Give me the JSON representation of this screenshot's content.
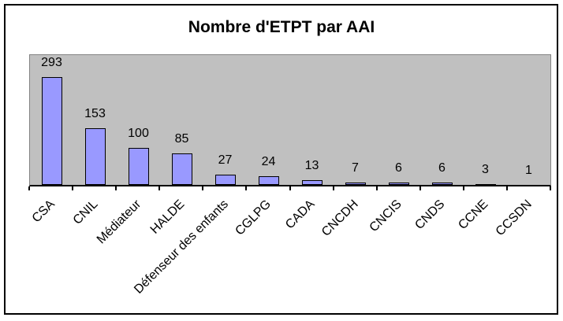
{
  "chart_data": {
    "type": "bar",
    "title": "Nombre d'ETPT par AAI",
    "categories": [
      "CSA",
      "CNIL",
      "Médiateur",
      "HALDE",
      "Défenseur des enfants",
      "CGLPG",
      "CADA",
      "CNCDH",
      "CNCIS",
      "CNDS",
      "CCNE",
      "CCSDN"
    ],
    "values": [
      293,
      153,
      100,
      85,
      27,
      24,
      13,
      7,
      6,
      6,
      3,
      1
    ],
    "value_labels": [
      "293",
      "153",
      "100",
      "85",
      "27",
      "24",
      "13",
      "7",
      "6",
      "6",
      "3",
      "1"
    ],
    "xlabel": "",
    "ylabel": "",
    "legend": "none",
    "grid": false,
    "y_axis_visible": false,
    "value_labels_shown": true,
    "category_label_rotation_deg": -45,
    "colors": {
      "bar_fill": "#9999FF",
      "bar_border": "#000000",
      "plot_background": "#C0C0C0",
      "plot_border": "#848484",
      "axis": "#000000",
      "text": "#000000",
      "chart_background": "#FFFFFF",
      "chart_border": "#000000"
    }
  }
}
